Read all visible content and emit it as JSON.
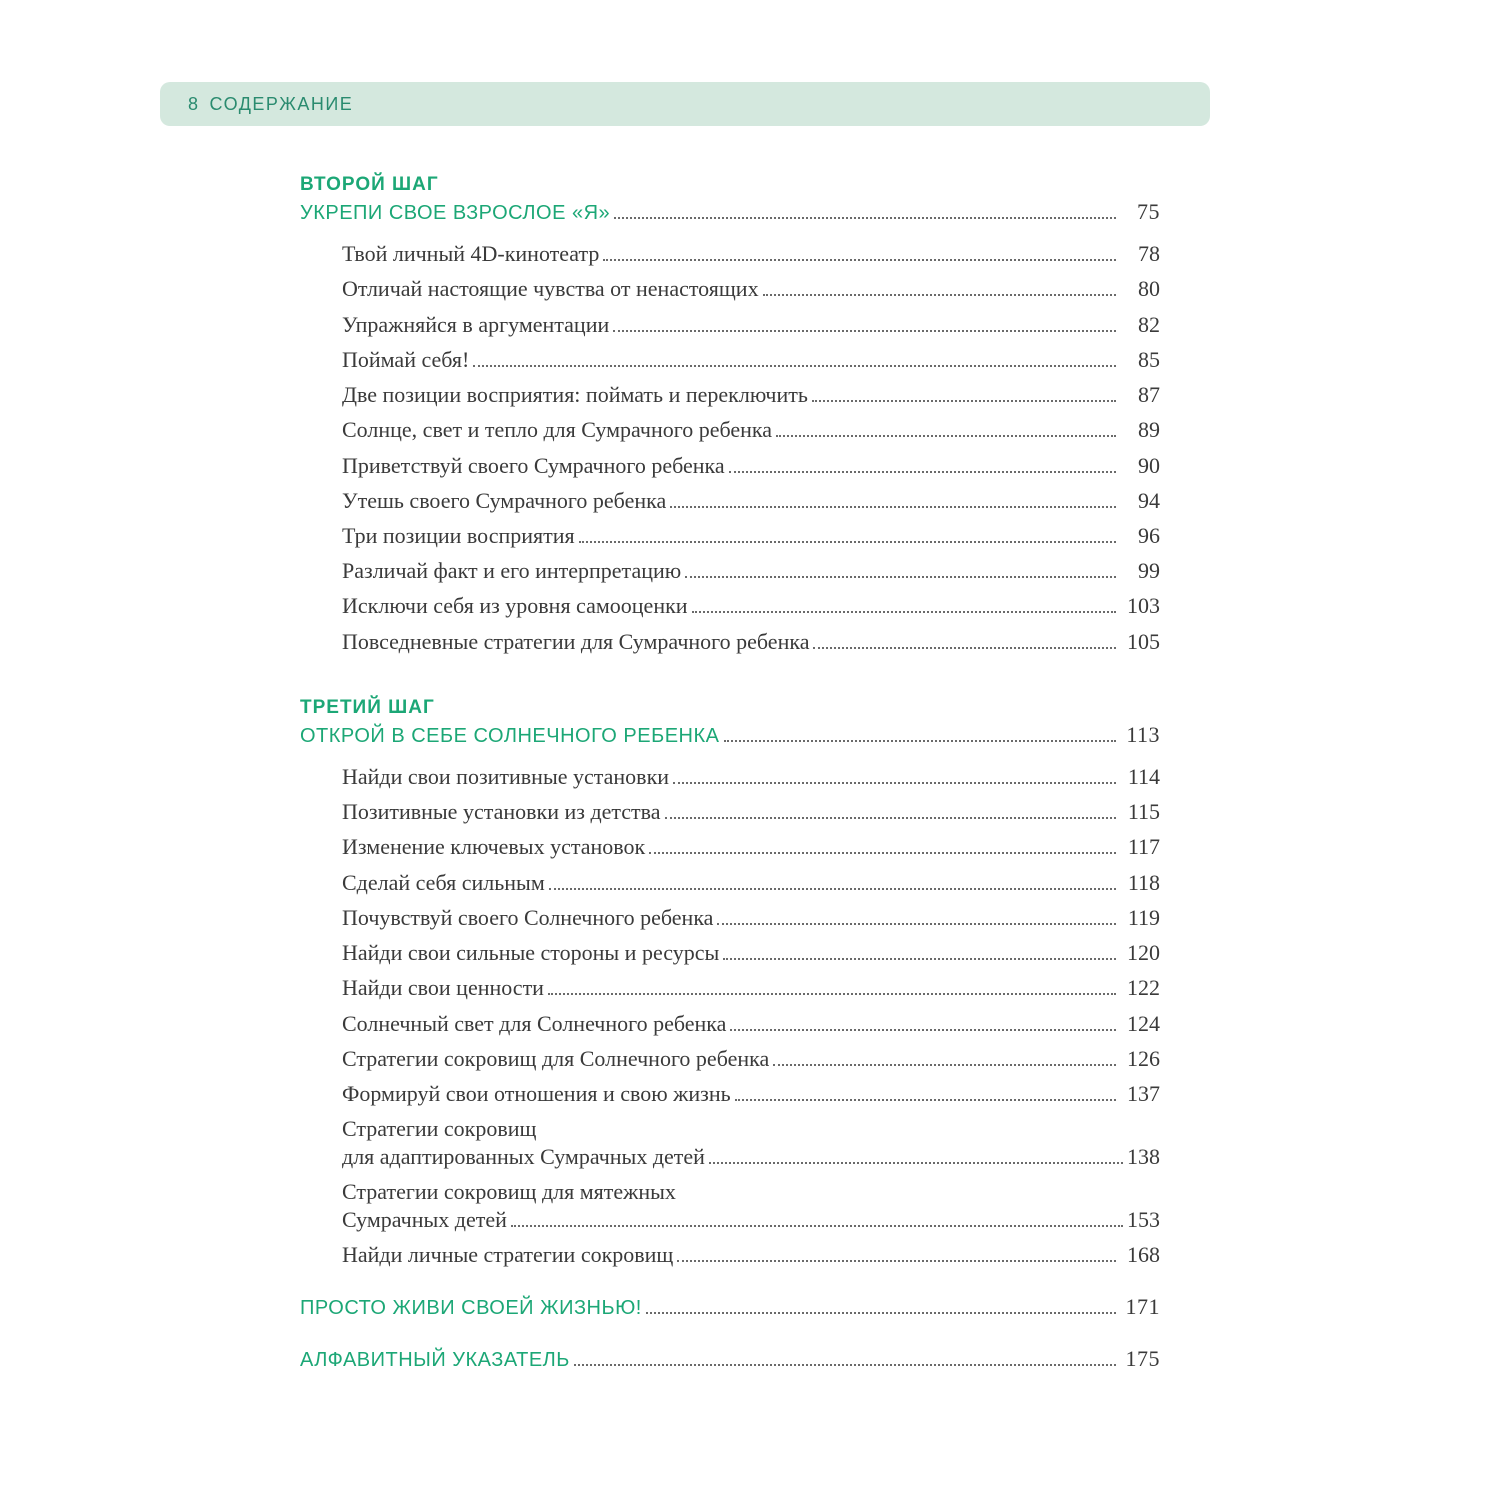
{
  "header": {
    "page_number": "8",
    "title": "СОДЕРЖАНИЕ"
  },
  "colors": {
    "accent_green": "#1ca776",
    "header_bg": "#d4e8de",
    "text": "#3a3a3a",
    "leader": "#6a6a6a",
    "background": "#ffffff"
  },
  "typography": {
    "header_font": "Arial",
    "body_font": "Georgia",
    "section_label_size_pt": 14,
    "chapter_size_pt": 15,
    "sub_size_pt": 16,
    "header_size_pt": 13
  },
  "sections": [
    {
      "label": "ВТОРОЙ ШАГ",
      "chapter": {
        "title": "УКРЕПИ СВОЕ ВЗРОСЛОЕ «Я»",
        "page": "75"
      },
      "items": [
        {
          "title": "Твой личный 4D-кинотеатр",
          "page": "78"
        },
        {
          "title": "Отличай настоящие чувства от ненастоящих",
          "page": "80"
        },
        {
          "title": "Упражняйся в аргументации",
          "page": "82"
        },
        {
          "title": "Поймай себя!",
          "page": "85"
        },
        {
          "title": "Две позиции восприятия: поймать и переключить",
          "page": "87"
        },
        {
          "title": "Солнце, свет и тепло для Сумрачного ребенка",
          "page": "89"
        },
        {
          "title": "Приветствуй своего Сумрачного ребенка",
          "page": "90"
        },
        {
          "title": "Утешь своего Сумрачного ребенка",
          "page": "94"
        },
        {
          "title": "Три позиции восприятия",
          "page": "96"
        },
        {
          "title": "Различай факт и его интерпретацию",
          "page": "99"
        },
        {
          "title": "Исключи себя из уровня самооценки",
          "page": "103"
        },
        {
          "title": "Повседневные стратегии для Сумрачного ребенка",
          "page": "105"
        }
      ]
    },
    {
      "label": "ТРЕТИЙ ШАГ",
      "chapter": {
        "title": "ОТКРОЙ В СЕБЕ СОЛНЕЧНОГО РЕБЕНКА",
        "page": "113"
      },
      "items": [
        {
          "title": "Найди свои позитивные установки",
          "page": "114"
        },
        {
          "title": "Позитивные установки из детства",
          "page": "115"
        },
        {
          "title": "Изменение ключевых установок",
          "page": "117"
        },
        {
          "title": "Сделай себя сильным",
          "page": "118"
        },
        {
          "title": "Почувствуй своего Солнечного ребенка",
          "page": "119"
        },
        {
          "title": "Найди свои сильные стороны и ресурсы",
          "page": "120"
        },
        {
          "title": "Найди свои ценности",
          "page": "122"
        },
        {
          "title": "Солнечный свет для Солнечного ребенка",
          "page": "124"
        },
        {
          "title": "Стратегии сокровищ для Солнечного ребенка",
          "page": "126"
        },
        {
          "title": "Формируй свои отношения и свою жизнь",
          "page": "137"
        },
        {
          "title_line1": "Стратегии сокровищ",
          "title_line2": "для адаптированных Сумрачных детей",
          "page": "138",
          "multiline": true
        },
        {
          "title_line1": "Стратегии сокровищ для мятежных",
          "title_line2": "Сумрачных детей",
          "page": "153",
          "multiline": true
        },
        {
          "title": "Найди личные стратегии сокровищ",
          "page": "168"
        }
      ]
    }
  ],
  "standalone": [
    {
      "title": "ПРОСТО ЖИВИ СВОЕЙ ЖИЗНЬЮ!",
      "page": "171"
    },
    {
      "title": "АЛФАВИТНЫЙ УКАЗАТЕЛЬ",
      "page": "175"
    }
  ]
}
